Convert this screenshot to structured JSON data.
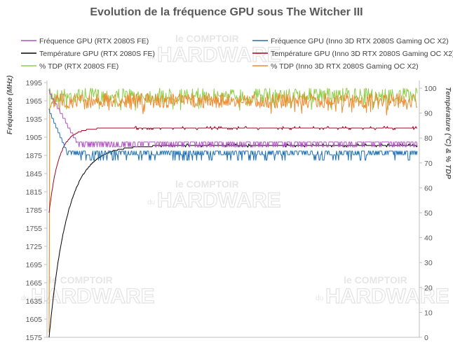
{
  "chart_data": {
    "type": "line",
    "title": "Evolution de la fréquence GPU sous The Witcher III",
    "ylabel": "Fréquence (MHz)",
    "y2label": "Température (°C) & % TDP",
    "ylim": [
      1575,
      2010
    ],
    "y2lim": [
      0,
      105
    ],
    "yticks": [
      "1995",
      "1965",
      "1935",
      "1905",
      "1875",
      "1845",
      "1815",
      "1785",
      "1755",
      "1725",
      "1695",
      "1665",
      "1635",
      "1605",
      "1575"
    ],
    "y2ticks": [
      "100",
      "90",
      "80",
      "70",
      "60",
      "50",
      "40",
      "30",
      "20",
      "10",
      "0"
    ],
    "x_points": 530,
    "legend": [
      {
        "name": "Fréquence GPU (RTX 2080S FE)",
        "color": "#b44fc8"
      },
      {
        "name": "Fréquence GPU (Inno 3D RTX 2080S Gaming OC X2)",
        "color": "#1f6fb5"
      },
      {
        "name": "Température GPU  (RTX 2080S FE)",
        "color": "#000000"
      },
      {
        "name": "Température GPU (Inno 3D RTX 2080S Gaming OC X2)",
        "color": "#a3061c"
      },
      {
        "name": "% TDP (RTX 2080S FE)",
        "color": "#8fce4a"
      },
      {
        "name": "% TDP (Inno 3D RTX 2080S Gaming OC X2)",
        "color": "#ef8a2e"
      }
    ],
    "series": [
      {
        "name": "Fréquence GPU (RTX 2080S FE)",
        "axis": "left",
        "start": 1980,
        "steady": 1897,
        "alt": 1889,
        "settle_at": 40
      },
      {
        "name": "Fréquence GPU (Inno 3D RTX 2080S Gaming OC X2)",
        "axis": "left",
        "start": 1950,
        "steady": 1882,
        "alt": 1867,
        "settle_at": 25
      },
      {
        "name": "Température GPU  (RTX 2080S FE)",
        "axis": "right",
        "start": 0,
        "steady": 77,
        "settle_at": 150
      },
      {
        "name": "Température GPU (Inno 3D RTX 2080S Gaming OC X2)",
        "axis": "right",
        "start": 50,
        "steady": 84,
        "settle_at": 120
      },
      {
        "name": "% TDP (RTX 2080S FE)",
        "axis": "right",
        "start": 2,
        "steady": 100
      },
      {
        "name": "% TDP (Inno 3D RTX 2080S Gaming OC X2)",
        "axis": "right",
        "start": 2,
        "steady": 98
      }
    ]
  },
  "watermark": {
    "line1": "le COMPTOIR",
    "line2": "HARDWARE",
    "du": "du"
  }
}
